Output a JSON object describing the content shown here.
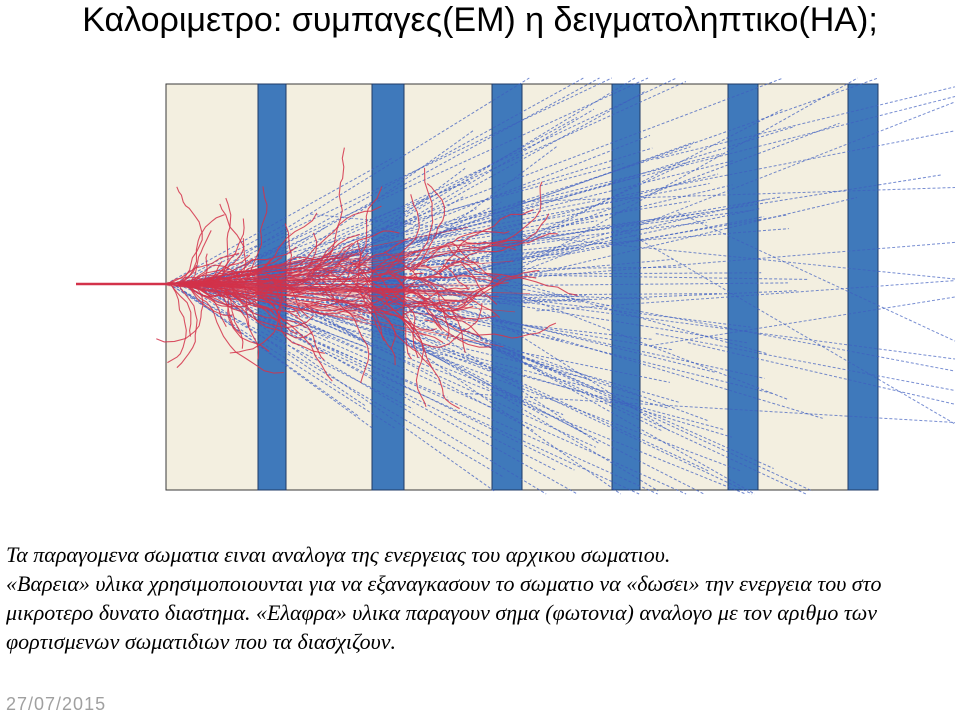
{
  "slide": {
    "title": "Καλοριμετρο: συμπαγες(ΕΜ) η δειγματοληπτικο(ΗΑ);",
    "caption": {
      "line1": "Τα παραγομενα σωματια ειναι αναλογα της ενεργειας του αρχικου σωματιου.",
      "line2": "«Βαρεια» υλικα χρησιμοποιουνται για να εξαναγκασουν το σωματιο να «δωσει» την ενεργεια του στο μικροτερο δυνατο διαστημα. «Ελαφρα» υλικα παραγουν σημα (φωτονια) αναλογο με τον αριθμο των φορτισμενων σωματιδιων που τα διασχιζουν."
    },
    "footer_date": "27/07/2015"
  },
  "figure": {
    "colors": {
      "absorber": "#3f79bb",
      "absorber_border": "#1f3a66",
      "active": "#f3efe0",
      "active_border": "#3a3a3a",
      "charged_track": "#d3324a",
      "photon_track": "#3f5fc0",
      "incoming_beam": "#d3324a"
    }
  }
}
